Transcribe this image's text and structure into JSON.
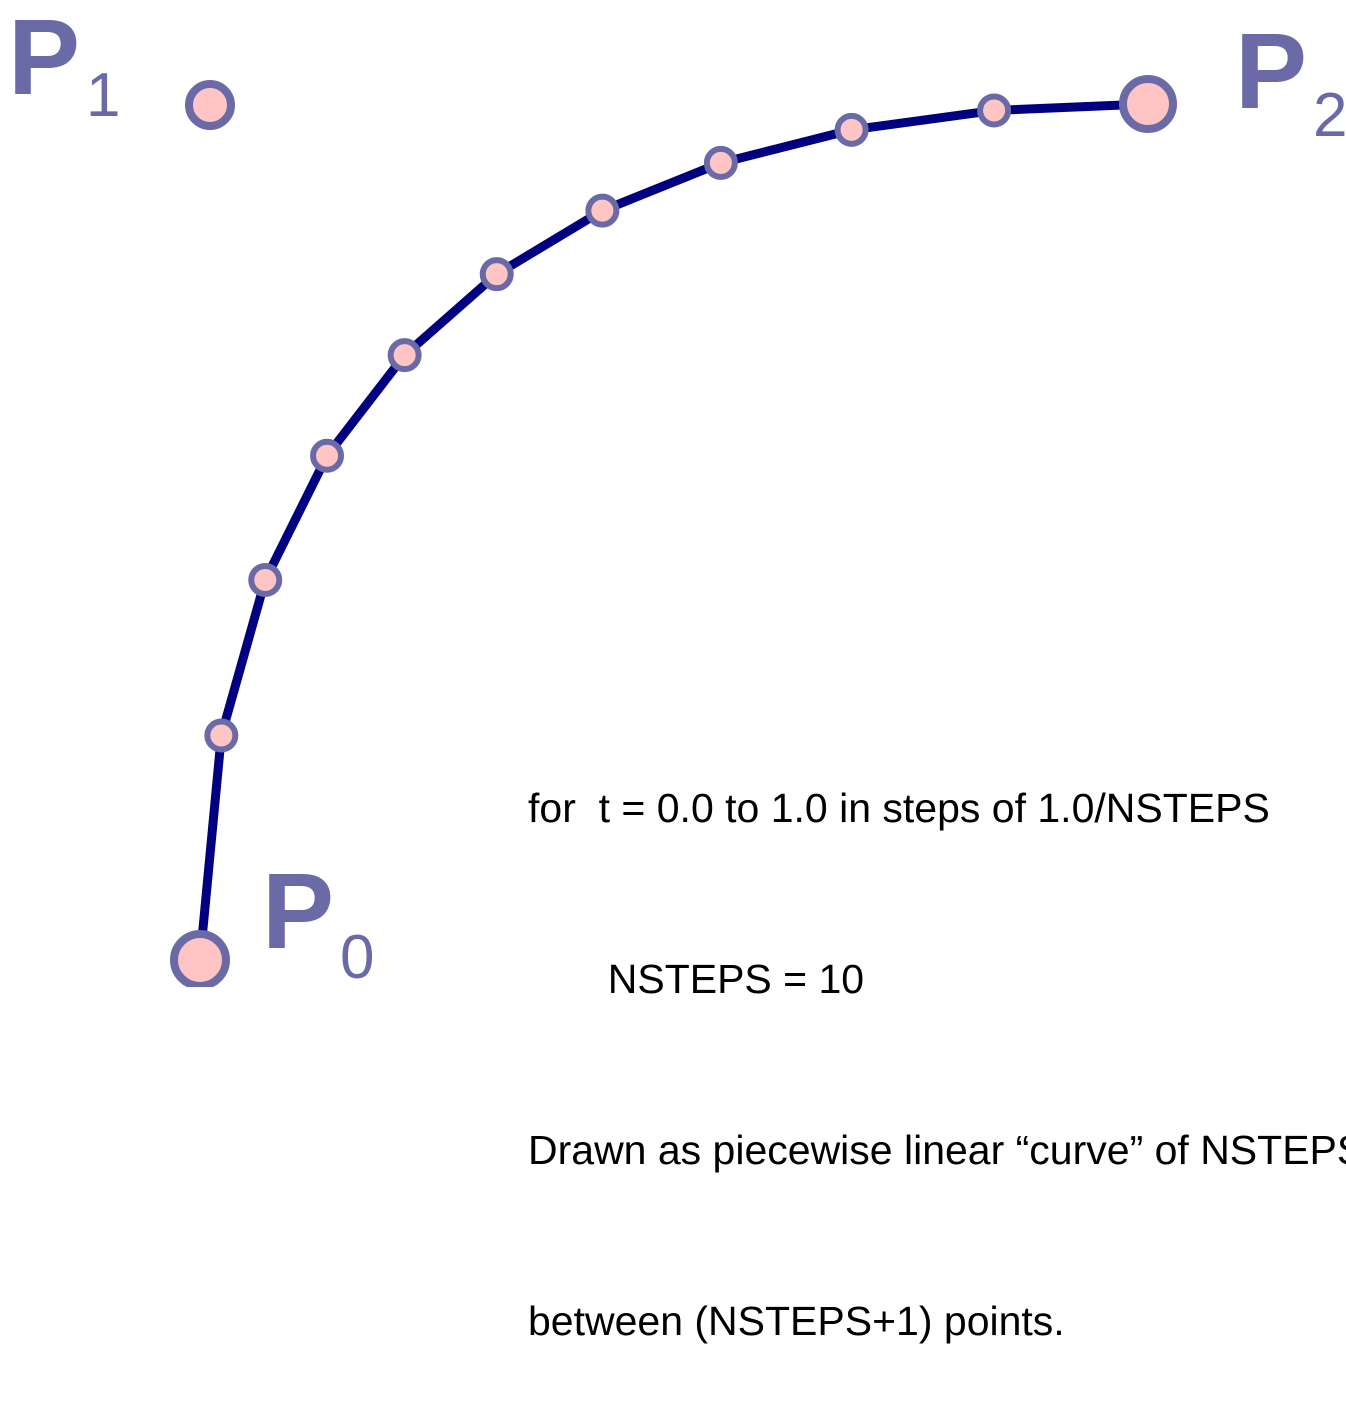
{
  "labels": {
    "p0": {
      "main": "P",
      "sub": "0"
    },
    "p1": {
      "main": "P",
      "sub": "1"
    },
    "p2": {
      "main": "P",
      "sub": "2"
    }
  },
  "description": {
    "line1": "for  t = 0.0 to 1.0 in steps of 1.0/NSTEPS",
    "line2": "       NSTEPS = 10",
    "line3": "Drawn as piecewise linear “curve” of NSTEPS segments",
    "line4": "between (NSTEPS+1) points."
  },
  "colors": {
    "curve": "#000080",
    "point_fill": "#ffc5c5",
    "point_stroke": "#6a6aa6",
    "label": "#6a6aa6"
  },
  "nsteps": 10
}
